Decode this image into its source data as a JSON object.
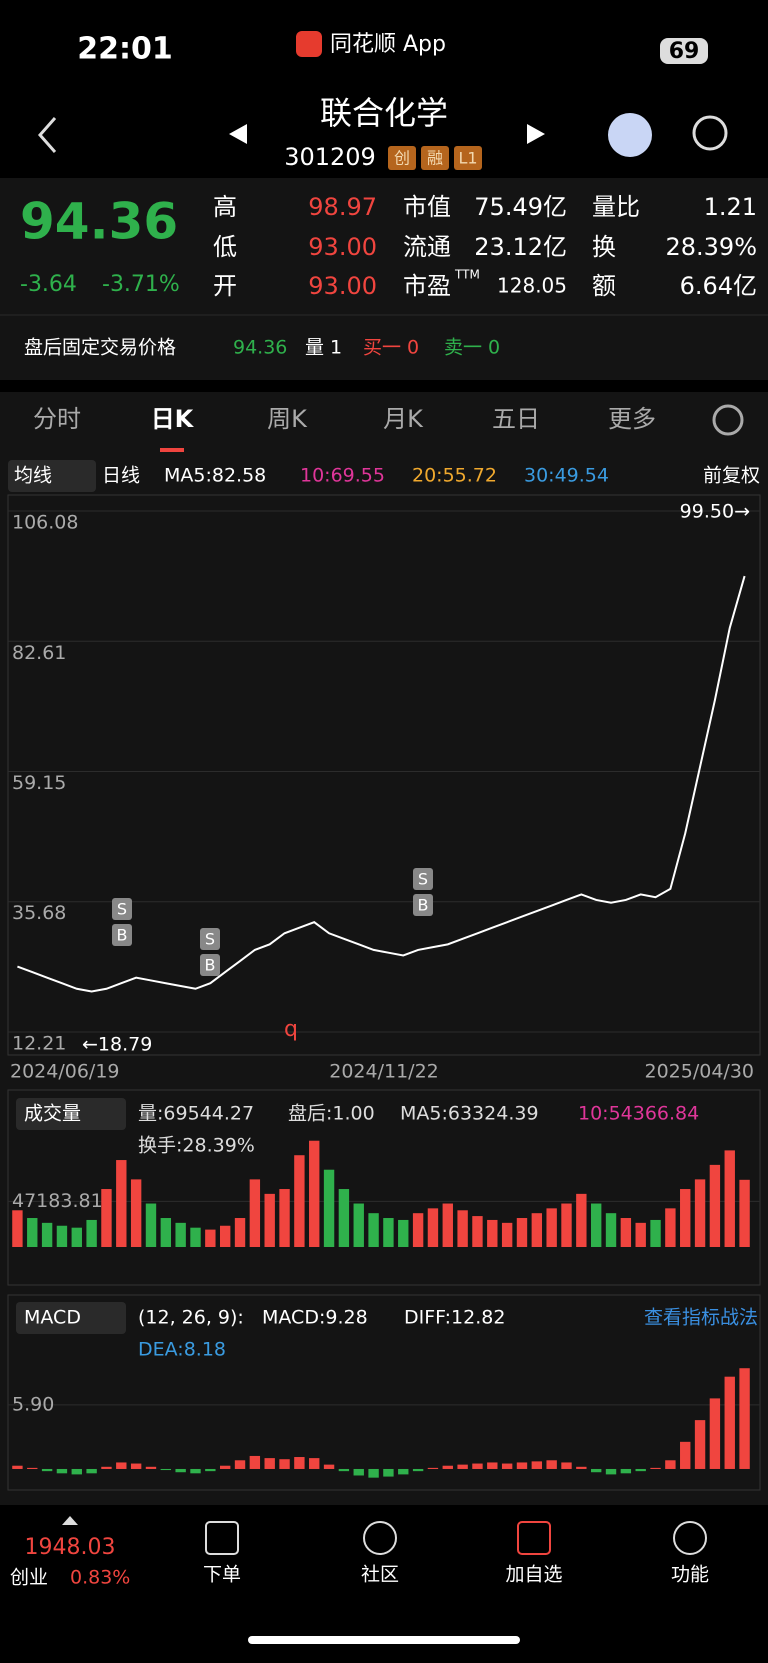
{
  "status_bar": {
    "time": "22:01",
    "app": "同花顺 App",
    "battery": "69"
  },
  "header": {
    "title": "联合化学",
    "code": "301209",
    "badges": [
      "创",
      "融",
      "L1"
    ]
  },
  "quote": {
    "price": "94.36",
    "change": "-3.64",
    "change_pct": "-3.71%",
    "fields": [
      {
        "label": "高",
        "value": "98.97"
      },
      {
        "label": "低",
        "value": "93.00"
      },
      {
        "label": "开",
        "value": "93.00"
      },
      {
        "label": "市值",
        "value": "75.49亿"
      },
      {
        "label": "流通",
        "value": "23.12亿"
      },
      {
        "label": "市盈",
        "sup": "TTM",
        "value": "128.05"
      },
      {
        "label": "量比",
        "value": "1.21"
      },
      {
        "label": "换",
        "value": "28.39%"
      },
      {
        "label": "额",
        "value": "6.64亿"
      }
    ]
  },
  "after_hours": {
    "label": "盘后固定交易价格",
    "price": "94.36",
    "volume": "量 1",
    "buy": "买一 0",
    "sell": "卖一 0"
  },
  "tabs": [
    "分时",
    "日K",
    "周K",
    "月K",
    "五日",
    "更多"
  ],
  "ma_bar": {
    "selector": "均线",
    "period": "日线",
    "ma5": "MA5:82.58",
    "ma10": "10:69.55",
    "ma20": "20:55.72",
    "ma30": "30:49.54",
    "adjust": "前复权"
  },
  "price_chart": {
    "type": "line",
    "ylim": [
      12.21,
      106.08
    ],
    "yticks": [
      106.08,
      82.61,
      59.15,
      35.68,
      12.21
    ],
    "high_label": "99.50→",
    "low_label": "←18.79",
    "event_marker": "q",
    "trade_markers": {
      "sell": "S",
      "buy": "B"
    },
    "x_labels": [
      "2024/06/19",
      "2024/11/22",
      "2025/04/30"
    ],
    "color": "#ffffff",
    "closes": [
      24,
      23,
      22,
      21,
      20,
      19.5,
      20,
      21,
      22,
      21.5,
      21,
      20.5,
      20,
      21,
      23,
      25,
      27,
      28,
      30,
      31,
      32,
      30,
      29,
      28,
      27,
      26.5,
      26,
      27,
      27.5,
      28,
      29,
      30,
      31,
      32,
      33,
      34,
      35,
      36,
      37,
      36,
      35.5,
      36,
      37,
      36.5,
      38,
      48,
      60,
      72,
      85,
      94.36
    ]
  },
  "volume_chart": {
    "type": "bar",
    "selector": "成交量",
    "stats": [
      "量:69544.27",
      "盘后:1.00",
      "MA5:63324.39",
      "10:54366.84",
      "换手:28.39%"
    ],
    "ylim": [
      0,
      118000
    ],
    "yticks": [
      47183.81
    ],
    "values": [
      38000,
      30000,
      25000,
      22000,
      20000,
      28000,
      60000,
      90000,
      70000,
      45000,
      30000,
      25000,
      20000,
      18000,
      22000,
      30000,
      70000,
      55000,
      60000,
      95000,
      110000,
      80000,
      60000,
      45000,
      35000,
      30000,
      28000,
      35000,
      40000,
      45000,
      38000,
      32000,
      28000,
      25000,
      30000,
      35000,
      40000,
      45000,
      55000,
      45000,
      35000,
      30000,
      25000,
      28000,
      40000,
      60000,
      70000,
      85000,
      100000,
      69544.27
    ]
  },
  "macd_chart": {
    "type": "bar",
    "selector": "MACD",
    "params": "(12, 26, 9):",
    "macd": "MACD:9.28",
    "diff": "DIFF:12.82",
    "dea": "DEA:8.18",
    "link": "查看指标战法",
    "ylim": [
      -1.2,
      12.8
    ],
    "yticks": [
      {
        "value": 5.9,
        "label": "5.90"
      }
    ],
    "values": [
      0.3,
      0.1,
      -0.2,
      -0.4,
      -0.5,
      -0.4,
      0.2,
      0.6,
      0.5,
      0.2,
      -0.1,
      -0.3,
      -0.4,
      -0.2,
      0.3,
      0.8,
      1.2,
      1.0,
      0.9,
      1.1,
      1.0,
      0.4,
      -0.2,
      -0.6,
      -0.8,
      -0.7,
      -0.5,
      -0.2,
      0.1,
      0.3,
      0.4,
      0.5,
      0.6,
      0.5,
      0.6,
      0.7,
      0.8,
      0.6,
      0.2,
      -0.3,
      -0.5,
      -0.4,
      -0.2,
      0.1,
      0.8,
      2.5,
      4.5,
      6.5,
      8.5,
      9.28
    ]
  },
  "bottom_nav": {
    "index_value": "1948.03",
    "index_name": "创业",
    "index_change": "0.83%",
    "items": [
      "下单",
      "社区",
      "加自选",
      "功能"
    ]
  }
}
